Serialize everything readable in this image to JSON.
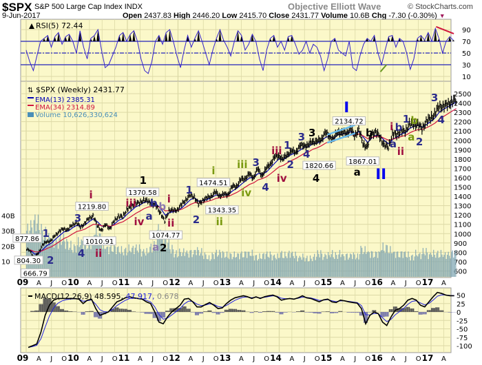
{
  "header": {
    "symbol": "$SPX",
    "name": "S&P 500 Large Cap Index",
    "exchange": "INDX",
    "brand": "Objective Elliott Wave",
    "copyright": "© StockCharts.com",
    "date": "9-Jun-2017",
    "open_label": "Open",
    "open": "2437.83",
    "high_label": "High",
    "high": "2446.20",
    "low_label": "Low",
    "low": "2415.70",
    "close_label": "Close",
    "close": "2431.77",
    "volume_label": "Volume",
    "volume": "10.6B",
    "chg_label": "Chg",
    "chg": "-7.30 (-0.30%)",
    "chg_icon": "triangle-down-icon"
  },
  "colors": {
    "panel_bg": "#fbf8c9",
    "grid": "#dcd9a6",
    "price": "#000000",
    "ema13": "#0000b4",
    "ema34": "#d0143c",
    "volume": "#7fa5b2",
    "rsi": "#3322cc",
    "rsi_bands": "#2222bb",
    "macd": "#000000",
    "signal": "#2222dd",
    "histogram_pos": "#555555",
    "histogram_neg": "#7777aa",
    "wave_navy": "#2b2b8c",
    "wave_maroon": "#a01040",
    "wave_black": "#000000",
    "wave_olive": "#7a9a10",
    "wave_purple": "#8a78b0",
    "wave_blue": "#0000ee",
    "channel": "#66bbee"
  },
  "chart_data": [
    {
      "type": "line",
      "panel": "rsi",
      "title": "RSI(5) 72.44",
      "ylim": [
        0,
        100
      ],
      "yticks": [
        90,
        70,
        50,
        30,
        10
      ],
      "bands": [
        70,
        50,
        30
      ],
      "x_range": [
        "2009-01",
        "2017-06"
      ],
      "values": [
        55,
        35,
        20,
        45,
        70,
        75,
        80,
        60,
        78,
        85,
        65,
        78,
        82,
        70,
        50,
        88,
        60,
        40,
        75,
        80,
        90,
        55,
        25,
        30,
        45,
        60,
        80,
        85,
        70,
        82,
        88,
        70,
        40,
        20,
        15,
        35,
        70,
        80,
        65,
        85,
        90,
        70,
        45,
        25,
        55,
        80,
        60,
        75,
        88,
        70,
        50,
        30,
        55,
        75,
        90,
        72,
        60,
        45,
        70,
        88,
        80,
        55,
        65,
        82,
        70,
        40,
        20,
        55,
        75,
        80,
        60,
        70,
        55,
        78,
        80,
        65,
        48,
        55,
        70,
        50,
        65,
        60,
        45,
        20,
        40,
        70,
        75,
        55,
        50,
        45,
        70,
        25,
        20,
        45,
        65,
        75,
        70,
        80,
        50,
        30,
        55,
        78,
        80,
        60,
        75,
        70,
        50,
        22,
        40,
        75,
        80,
        72,
        85,
        70,
        92,
        75,
        50,
        70,
        78,
        72
      ],
      "trendlines": [
        {
          "color": "green",
          "from": [
            2016.0,
            18
          ],
          "to": [
            2016.12,
            30
          ]
        },
        {
          "color": "red",
          "from": [
            2017.1,
            95
          ],
          "to": [
            2017.45,
            83
          ]
        }
      ]
    },
    {
      "type": "bar",
      "panel": "price",
      "title": "$SPX (Weekly) 2431.77",
      "legend": [
        {
          "label": "EMA(13) 2385.31",
          "period": 13,
          "color": "#0000b4"
        },
        {
          "label": "EMA(34) 2314.89",
          "period": 34,
          "color": "#d0143c"
        },
        {
          "label": "Volume 10,626,330,624",
          "color": "#4a8fb8"
        }
      ],
      "ylim": [
        550,
        2550
      ],
      "yticks": [
        2500,
        2400,
        2300,
        2200,
        2100,
        2000,
        1900,
        1800,
        1700,
        1600,
        1500,
        1400,
        1300,
        1200,
        1100,
        1000,
        900,
        800,
        700,
        600
      ],
      "volume_ticks": [
        "40B",
        "30B",
        "20B",
        "10"
      ],
      "start": "2009-01",
      "frequency": "monthly",
      "close": [
        826,
        735,
        798,
        873,
        919,
        919,
        987,
        1021,
        1057,
        1036,
        1096,
        1115,
        1074,
        1104,
        1169,
        1187,
        1089,
        1031,
        1102,
        1049,
        1141,
        1183,
        1181,
        1258,
        1286,
        1327,
        1326,
        1364,
        1345,
        1321,
        1292,
        1219,
        1131,
        1253,
        1247,
        1258,
        1312,
        1366,
        1408,
        1398,
        1310,
        1362,
        1379,
        1407,
        1441,
        1412,
        1416,
        1426,
        1498,
        1515,
        1569,
        1598,
        1631,
        1606,
        1686,
        1633,
        1682,
        1757,
        1806,
        1848,
        1783,
        1859,
        1872,
        1884,
        1924,
        1960,
        1931,
        2003,
        1972,
        2018,
        2068,
        2059,
        1995,
        2105,
        2068,
        2086,
        2107,
        2063,
        2104,
        1972,
        1920,
        2079,
        2080,
        2044,
        1940,
        1932,
        2060,
        2065,
        2097,
        2099,
        2174,
        2171,
        2168,
        2126,
        2199,
        2239,
        2279,
        2364,
        2363,
        2384,
        2412,
        2432
      ],
      "volume_billions": [
        30,
        32,
        35,
        30,
        28,
        25,
        22,
        22,
        24,
        22,
        20,
        19,
        22,
        22,
        20,
        22,
        30,
        26,
        20,
        18,
        18,
        18,
        17,
        17,
        18,
        18,
        18,
        16,
        16,
        19,
        20,
        30,
        25,
        22,
        18,
        15,
        16,
        16,
        15,
        15,
        17,
        16,
        14,
        12,
        14,
        15,
        15,
        14,
        14,
        14,
        14,
        14,
        15,
        15,
        13,
        13,
        14,
        14,
        13,
        13,
        15,
        14,
        15,
        14,
        12,
        13,
        12,
        12,
        13,
        15,
        13,
        14,
        15,
        14,
        15,
        13,
        13,
        14,
        13,
        18,
        17,
        15,
        14,
        15,
        19,
        19,
        17,
        15,
        14,
        15,
        14,
        13,
        15,
        14,
        16,
        14,
        15,
        15,
        15,
        14,
        14,
        15
      ],
      "price_callouts": [
        {
          "text": "877.86",
          "date": 2009.02,
          "price": 877.86,
          "side": "above"
        },
        {
          "text": "804.30",
          "date": 2009.05,
          "price": 804.3,
          "side": "below"
        },
        {
          "text": "666.79",
          "date": 2009.18,
          "price": 666.79,
          "side": "below"
        },
        {
          "text": "1219.80",
          "date": 2010.3,
          "price": 1219.8,
          "side": "above"
        },
        {
          "text": "1010.91",
          "date": 2010.45,
          "price": 1010.91,
          "side": "below"
        },
        {
          "text": "1370.58",
          "date": 2011.3,
          "price": 1370.58,
          "side": "above"
        },
        {
          "text": "1074.77",
          "date": 2011.76,
          "price": 1074.77,
          "side": "below"
        },
        {
          "text": "1474.51",
          "date": 2012.7,
          "price": 1474.51,
          "side": "above"
        },
        {
          "text": "1343.35",
          "date": 2012.87,
          "price": 1343.35,
          "side": "below"
        },
        {
          "text": "1820.66",
          "date": 2014.79,
          "price": 1820.66,
          "side": "below"
        },
        {
          "text": "2134.72",
          "date": 2015.38,
          "price": 2134.72,
          "side": "above"
        },
        {
          "text": "1867.01",
          "date": 2015.65,
          "price": 1867.01,
          "side": "below"
        }
      ],
      "wave_labels": [
        {
          "text": "1",
          "color": "navy",
          "date": 2009.39,
          "price": 1009
        },
        {
          "text": "2",
          "color": "navy",
          "date": 2009.48,
          "price": 699
        },
        {
          "text": "3",
          "color": "navy",
          "date": 2010.02,
          "price": 1216
        },
        {
          "text": "4",
          "color": "navy",
          "date": 2010.09,
          "price": 950
        },
        {
          "text": "i",
          "color": "maroon",
          "date": 2010.28,
          "price": 1400
        },
        {
          "text": "ii",
          "color": "maroon",
          "date": 2010.43,
          "price": 795
        },
        {
          "text": "iii",
          "color": "maroon",
          "date": 2011.07,
          "price": 1400
        },
        {
          "text": "iv",
          "color": "maroon",
          "date": 2011.23,
          "price": 1135
        },
        {
          "text": "1",
          "color": "black",
          "date": 2011.31,
          "price": 1533
        },
        {
          "text": "a",
          "color": "navy",
          "date": 2011.43,
          "price": 1194
        },
        {
          "text": "b",
          "color": "navy",
          "date": 2011.52,
          "price": 1400
        },
        {
          "text": "a",
          "color": "purple",
          "date": 2011.56,
          "price": 1039
        },
        {
          "text": "b",
          "color": "purple",
          "date": 2011.69,
          "price": 1297
        },
        {
          "text": "2",
          "color": "black",
          "date": 2011.71,
          "price": 898
        },
        {
          "text": "i",
          "color": "maroon",
          "date": 2011.82,
          "price": 1378
        },
        {
          "text": "ii",
          "color": "maroon",
          "date": 2011.86,
          "price": 1053
        },
        {
          "text": "1",
          "color": "navy",
          "date": 2012.22,
          "price": 1474
        },
        {
          "text": "2",
          "color": "navy",
          "date": 2012.36,
          "price": 1157
        },
        {
          "text": "i",
          "color": "olive",
          "date": 2012.7,
          "price": 1636
        },
        {
          "text": "ii",
          "color": "olive",
          "date": 2012.82,
          "price": 1157
        },
        {
          "text": "iii",
          "color": "olive",
          "date": 2013.27,
          "price": 1747
        },
        {
          "text": "3",
          "color": "navy",
          "date": 2013.54,
          "price": 1769
        },
        {
          "text": "iv",
          "color": "olive",
          "date": 2013.35,
          "price": 1445
        },
        {
          "text": "4",
          "color": "navy",
          "date": 2013.73,
          "price": 1504
        },
        {
          "text": "iii",
          "color": "maroon",
          "date": 2013.95,
          "price": 1895
        },
        {
          "text": "iv",
          "color": "maroon",
          "date": 2014.05,
          "price": 1600
        },
        {
          "text": "1",
          "color": "navy",
          "date": 2014.16,
          "price": 1954
        },
        {
          "text": "2",
          "color": "navy",
          "date": 2014.22,
          "price": 1703
        },
        {
          "text": "3",
          "color": "navy",
          "date": 2014.44,
          "price": 2042
        },
        {
          "text": "4",
          "color": "navy",
          "date": 2014.54,
          "price": 1792
        },
        {
          "text": "3",
          "color": "black",
          "date": 2014.65,
          "price": 2087
        },
        {
          "text": "4",
          "color": "black",
          "date": 2014.73,
          "price": 1622
        },
        {
          "text": "I",
          "color": "blue",
          "date": 2015.33,
          "price": 2323
        },
        {
          "text": "a",
          "color": "black",
          "date": 2015.54,
          "price": 1666
        },
        {
          "text": "b",
          "color": "black",
          "date": 2015.78,
          "price": 2153
        },
        {
          "text": "II",
          "color": "blue",
          "date": 2016.01,
          "price": 1673
        },
        {
          "text": "i",
          "color": "maroon",
          "date": 2016.22,
          "price": 2153
        },
        {
          "text": "a",
          "color": "navy",
          "date": 2016.25,
          "price": 1969
        },
        {
          "text": "b",
          "color": "navy",
          "date": 2016.36,
          "price": 2146
        },
        {
          "text": "ii",
          "color": "maroon",
          "date": 2016.4,
          "price": 1887
        },
        {
          "text": "1",
          "color": "navy",
          "date": 2016.51,
          "price": 2234
        },
        {
          "text": "a",
          "color": "olive",
          "date": 2016.61,
          "price": 2042
        },
        {
          "text": "b",
          "color": "olive",
          "date": 2016.67,
          "price": 2220
        },
        {
          "text": "2",
          "color": "navy",
          "date": 2016.77,
          "price": 1991
        },
        {
          "text": "3",
          "color": "navy",
          "date": 2017.07,
          "price": 2463
        },
        {
          "text": "4",
          "color": "navy",
          "date": 2017.2,
          "price": 2227
        }
      ],
      "channel_lines": [
        {
          "from": [
            2014.95,
            2060
          ],
          "to": [
            2015.5,
            2165
          ]
        },
        {
          "from": [
            2014.95,
            1975
          ],
          "to": [
            2015.5,
            2075
          ]
        }
      ]
    },
    {
      "type": "line",
      "panel": "macd",
      "title": "MACD(12,26,9)",
      "macd_value": "48.595",
      "signal_value": "47.917",
      "histogram_value": "0.678",
      "ylim": [
        -115,
        65
      ],
      "yticks": [
        50,
        25,
        0,
        -25,
        -50,
        -75,
        -100
      ],
      "signal_period": 9,
      "start": "2009-01",
      "frequency": "monthly",
      "macd": [
        -105,
        -100,
        -95,
        -60,
        -10,
        20,
        35,
        40,
        40,
        40,
        40,
        40,
        38,
        25,
        35,
        38,
        10,
        -10,
        -5,
        0,
        15,
        30,
        35,
        42,
        45,
        42,
        40,
        38,
        30,
        25,
        0,
        -30,
        -35,
        -15,
        0,
        10,
        20,
        38,
        40,
        30,
        15,
        15,
        22,
        28,
        20,
        10,
        12,
        25,
        35,
        42,
        45,
        48,
        45,
        40,
        45,
        40,
        45,
        48,
        50,
        45,
        35,
        38,
        40,
        38,
        42,
        48,
        42,
        40,
        35,
        30,
        36,
        38,
        30,
        28,
        35,
        33,
        30,
        28,
        26,
        10,
        -35,
        -10,
        0,
        -5,
        -30,
        -40,
        -15,
        5,
        10,
        20,
        35,
        40,
        35,
        20,
        15,
        30,
        45,
        58,
        55,
        50,
        48,
        48
      ]
    }
  ],
  "x_axis": {
    "labels": [
      "09",
      "A",
      "J",
      "O",
      "10",
      "A",
      "J",
      "O",
      "11",
      "A",
      "J",
      "O",
      "12",
      "A",
      "J",
      "O",
      "13",
      "A",
      "J",
      "O",
      "14",
      "A",
      "J",
      "O",
      "15",
      "A",
      "J",
      "O",
      "16",
      "A",
      "J",
      "O",
      "17",
      "A"
    ]
  }
}
